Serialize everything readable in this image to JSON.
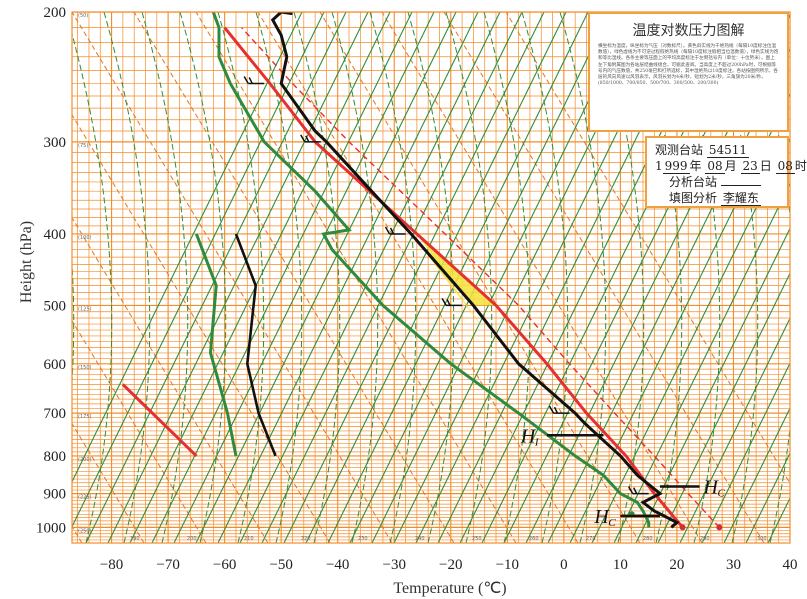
{
  "chart_data": {
    "type": "line",
    "xlabel": "Temperature (℃)",
    "ylabel": "Height (hPa)",
    "x_ticks": [
      -80,
      -70,
      -60,
      -50,
      -40,
      -30,
      -20,
      -10,
      0,
      10,
      20,
      30,
      40
    ],
    "y_ticks": [
      200,
      300,
      400,
      500,
      600,
      700,
      800,
      900,
      1000
    ],
    "xlim": [
      -87,
      40
    ],
    "ylim": [
      1050,
      200
    ],
    "y_scale": "log",
    "grid": true,
    "theta_labels": [
      "190",
      "200",
      "210",
      "220",
      "230",
      "240",
      "250",
      "260",
      "270",
      "280",
      "290",
      "300"
    ],
    "height_labels": [
      "(50)",
      "(75)",
      "(100)",
      "(125)",
      "(150)",
      "(175)",
      "(200)",
      "(225)",
      "(250)"
    ],
    "temperature_profile": [
      {
        "p": 1000,
        "t": 19
      },
      {
        "p": 985,
        "t": 20
      },
      {
        "p": 950,
        "t": 16
      },
      {
        "p": 925,
        "t": 14
      },
      {
        "p": 900,
        "t": 17
      },
      {
        "p": 850,
        "t": 13
      },
      {
        "p": 800,
        "t": 10
      },
      {
        "p": 750,
        "t": 6
      },
      {
        "p": 720,
        "t": 3.5
      },
      {
        "p": 700,
        "t": 2
      },
      {
        "p": 600,
        "t": -8
      },
      {
        "p": 500,
        "t": -16
      },
      {
        "p": 400,
        "t": -27
      },
      {
        "p": 350,
        "t": -34
      },
      {
        "p": 300,
        "t": -42
      },
      {
        "p": 290,
        "t": -44
      },
      {
        "p": 250,
        "t": -50
      },
      {
        "p": 230,
        "t": -49
      },
      {
        "p": 215,
        "t": -50
      },
      {
        "p": 205,
        "t": -51.5
      },
      {
        "p": 200,
        "t": -50
      },
      {
        "p": 201,
        "t": -48
      }
    ],
    "dewpoint_profile": [
      {
        "p": 1000,
        "t": 15
      },
      {
        "p": 985,
        "t": 15
      },
      {
        "p": 950,
        "t": 14
      },
      {
        "p": 925,
        "t": 13
      },
      {
        "p": 900,
        "t": 10
      },
      {
        "p": 850,
        "t": 7
      },
      {
        "p": 800,
        "t": 2
      },
      {
        "p": 700,
        "t": -8
      },
      {
        "p": 600,
        "t": -20
      },
      {
        "p": 500,
        "t": -32
      },
      {
        "p": 420,
        "t": -41
      },
      {
        "p": 400,
        "t": -42.5
      },
      {
        "p": 395,
        "t": -38
      },
      {
        "p": 350,
        "t": -44
      },
      {
        "p": 300,
        "t": -53
      },
      {
        "p": 250,
        "t": -59
      },
      {
        "p": 230,
        "t": -61
      },
      {
        "p": 210,
        "t": -61
      },
      {
        "p": 200,
        "t": -62
      }
    ],
    "parcel_curve": [
      {
        "p": 1000,
        "t": 21
      },
      {
        "p": 900,
        "t": 16
      },
      {
        "p": 800,
        "t": 11
      },
      {
        "p": 700,
        "t": 4
      },
      {
        "p": 600,
        "t": -3
      },
      {
        "p": 500,
        "t": -12
      },
      {
        "p": 400,
        "t": -26
      },
      {
        "p": 300,
        "t": -44
      },
      {
        "p": 250,
        "t": -52
      },
      {
        "p": 210,
        "t": -60
      }
    ],
    "parcel_dashed": [
      {
        "p": 1000,
        "t": 27.5
      },
      {
        "p": 900,
        "t": 22
      },
      {
        "p": 800,
        "t": 16
      },
      {
        "p": 700,
        "t": 9
      },
      {
        "p": 600,
        "t": 1
      },
      {
        "p": 500,
        "t": -8
      },
      {
        "p": 400,
        "t": -21
      },
      {
        "p": 300,
        "t": -38
      },
      {
        "p": 250,
        "t": -48
      },
      {
        "p": 210,
        "t": -57
      }
    ],
    "markers": [
      {
        "p": 1000,
        "t": 21,
        "color": "#d03030"
      },
      {
        "p": 1000,
        "t": 27.5,
        "color": "#d03030"
      },
      {
        "p": 960,
        "t": 12,
        "color": "#2a8a3a"
      }
    ],
    "wind_barbs": [
      {
        "p": 250,
        "t": -53
      },
      {
        "p": 300,
        "t": -43
      },
      {
        "p": 400,
        "t": -28
      },
      {
        "p": 500,
        "t": -18
      },
      {
        "p": 700,
        "t": 1
      },
      {
        "p": 900,
        "t": 15
      }
    ],
    "hc_levels": [
      {
        "p": 880,
        "t0": 17,
        "t1": 24,
        "label": "H",
        "sub": "C"
      },
      {
        "p": 965,
        "t0": 10,
        "t1": 17,
        "label": "H",
        "sub": "C"
      }
    ],
    "hi_level": {
      "p": 750,
      "t0": -3,
      "t1": 7,
      "label": "H",
      "sub": "I"
    },
    "inset_left": {
      "t_offset": 110,
      "black": [
        {
          "p": 400,
          "t": -58
        },
        {
          "p": 470,
          "t": -54.5
        },
        {
          "p": 600,
          "t": -56
        },
        {
          "p": 700,
          "t": -54
        },
        {
          "p": 800,
          "t": -51
        }
      ],
      "green": [
        {
          "p": 400,
          "t": -65
        },
        {
          "p": 470,
          "t": -61.5
        },
        {
          "p": 580,
          "t": -62.5
        },
        {
          "p": 700,
          "t": -59.5
        },
        {
          "p": 800,
          "t": -58
        }
      ],
      "red": [
        {
          "p": 640,
          "t": -78
        },
        {
          "p": 800,
          "t": -65
        }
      ]
    }
  },
  "legend": {
    "title": "温度对数压力图解",
    "body": "横坐标为温度，纵坐标为气压（对数标尺）。黄色斜实线为干绝热线（每隔10度标注位温数值），绿色虚线为不可逆过程假绝热线（每隔10度标注假相当位温数值），绿色实线为饱和等比湿线。各条主要等压面上的平均高度标注于左侧括号内（单位：十位势米）。图上左下角附属图为各站层结曲线组合，可据此查阅。当高度上不超过200hPa时，可根据等号内的气压数值，共250毫巴和打所选标，其中湿绝热以10度标注。各站按图例所示，各层的风向风速以风羽表示，风羽长划为4米/秒，短划为2米/秒，三角旗为20米/秒。",
    "note": "(850/1000、700/850、500/700、300/500、200/300)"
  },
  "station": {
    "label_station": "观测台站",
    "station_id": "54511",
    "year_prefix": "1",
    "year": "999",
    "year_unit": "年",
    "month": "08",
    "month_unit": "月",
    "day": "23",
    "day_unit": "日",
    "hour": "08",
    "hour_unit": "时",
    "label_analysis": "分析台站",
    "analysis_station": "",
    "label_analyst": "填图分析",
    "analyst": "李耀东"
  },
  "colors": {
    "grid_orange": "#f28c28",
    "dry_adiabat": "#2d8f3c",
    "temperature": "#111111",
    "dewpoint": "#2e8b3e",
    "parcel": "#e53030",
    "cape_fill": "#f5e23a"
  }
}
